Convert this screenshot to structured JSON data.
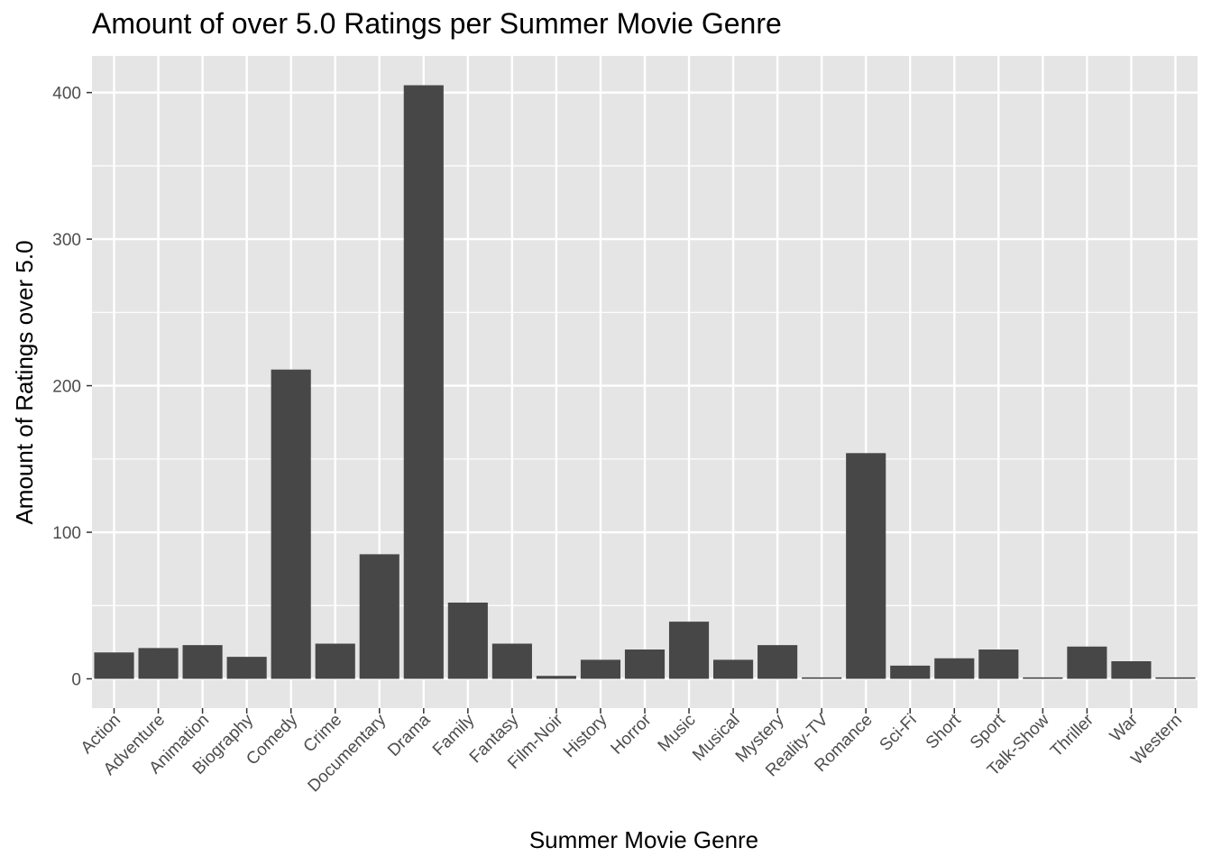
{
  "chart_data": {
    "type": "bar",
    "title": "Amount of over 5.0 Ratings per Summer Movie Genre",
    "xlabel": "Summer Movie Genre",
    "ylabel": "Amount of Ratings over 5.0",
    "categories": [
      "Action",
      "Adventure",
      "Animation",
      "Biography",
      "Comedy",
      "Crime",
      "Documentary",
      "Drama",
      "Family",
      "Fantasy",
      "Film-Noir",
      "History",
      "Horror",
      "Music",
      "Musical",
      "Mystery",
      "Reality-TV",
      "Romance",
      "Sci-Fi",
      "Short",
      "Sport",
      "Talk-Show",
      "Thriller",
      "War",
      "Western"
    ],
    "values": [
      18,
      21,
      23,
      15,
      211,
      24,
      85,
      405,
      52,
      24,
      2,
      13,
      20,
      39,
      13,
      23,
      1,
      154,
      9,
      14,
      20,
      1,
      22,
      12,
      1
    ],
    "ylim": [
      -20,
      425
    ],
    "yticks": [
      0,
      100,
      200,
      300,
      400
    ],
    "grid": true,
    "bar_color": "#474747",
    "panel_color": "#e5e5e5",
    "grid_color": "#ffffff"
  }
}
